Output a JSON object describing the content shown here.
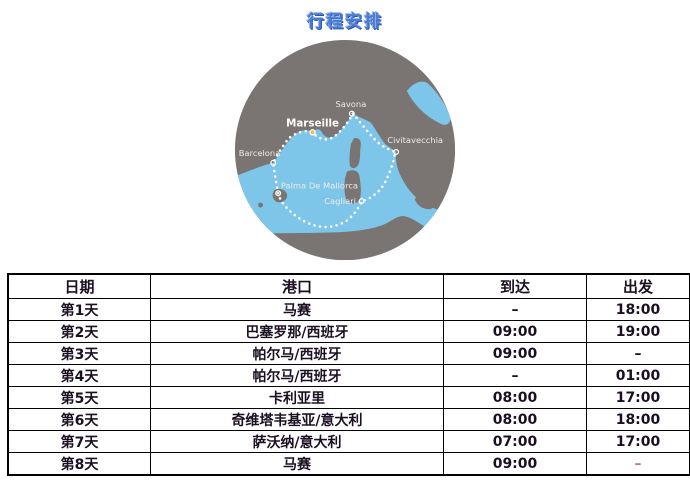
{
  "title": "行程安排",
  "colors": {
    "title_blue": "#4d7cd4",
    "land_gray": "#7a7472",
    "sea_blue": "#7ec6e9",
    "route_white": "#ffffff",
    "marseille_marker_yellow": "#e9c24d",
    "table_text": "#1c0f22",
    "accent_dash_pink": "#b07aa0",
    "table_border": "#000000"
  },
  "map": {
    "ports": [
      {
        "id": "savona",
        "label": "Savona"
      },
      {
        "id": "marseille",
        "label": "Marseille"
      },
      {
        "id": "civitavecchia",
        "label": "Civitavecchia"
      },
      {
        "id": "barcelona",
        "label": "Barcelona"
      },
      {
        "id": "palma",
        "label": "Palma De Mallorca"
      },
      {
        "id": "cagliari",
        "label": "Cagliari"
      }
    ]
  },
  "table": {
    "headers": [
      "日期",
      "港口",
      "到达",
      "出发"
    ],
    "rows": [
      {
        "day": "第1天",
        "port": "马赛",
        "arrive": "–",
        "depart": "18:00",
        "depart_accent": false
      },
      {
        "day": "第2天",
        "port": "巴塞罗那/西班牙",
        "arrive": "09:00",
        "depart": "19:00",
        "depart_accent": false
      },
      {
        "day": "第3天",
        "port": "帕尔马/西班牙",
        "arrive": "09:00",
        "depart": "–",
        "depart_accent": false
      },
      {
        "day": "第4天",
        "port": "帕尔马/西班牙",
        "arrive": "–",
        "depart": "01:00",
        "depart_accent": false
      },
      {
        "day": "第5天",
        "port": "卡利亚里",
        "arrive": "08:00",
        "depart": "17:00",
        "depart_accent": false
      },
      {
        "day": "第6天",
        "port": "奇维塔韦基亚/意大利",
        "arrive": "08:00",
        "depart": "18:00",
        "depart_accent": false
      },
      {
        "day": "第7天",
        "port": "萨沃纳/意大利",
        "arrive": "07:00",
        "depart": "17:00",
        "depart_accent": false
      },
      {
        "day": "第8天",
        "port": "马赛",
        "arrive": "09:00",
        "depart": "–",
        "depart_accent": true
      }
    ]
  }
}
